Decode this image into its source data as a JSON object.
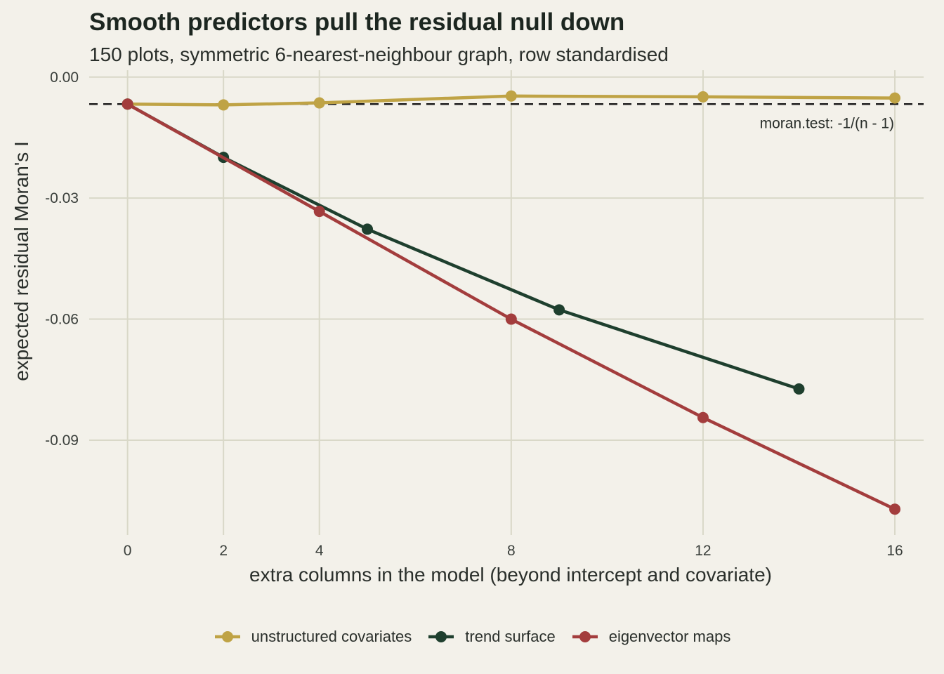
{
  "chart_data": {
    "type": "line",
    "title": "Smooth predictors pull the residual null down",
    "subtitle": "150 plots, symmetric 6-nearest-neighbour graph, row standardised",
    "xlabel": "extra columns in the model (beyond intercept and covariate)",
    "ylabel": "expected residual Moran's I",
    "xlim": [
      -0.8,
      16.6
    ],
    "ylim": [
      -0.1135,
      0.0017
    ],
    "x_ticks": [
      0,
      2,
      4,
      8,
      12,
      16
    ],
    "x_tick_labels": [
      "0",
      "2",
      "4",
      "8",
      "12",
      "16"
    ],
    "y_ticks": [
      0.0,
      -0.03,
      -0.06,
      -0.09
    ],
    "y_tick_labels": [
      "0.00",
      "-0.03",
      "-0.06",
      "-0.09"
    ],
    "grid": true,
    "legend_position": "bottom",
    "series": [
      {
        "name": "unstructured covariates",
        "color": "#bfa345",
        "x": [
          0,
          2,
          4,
          8,
          12,
          16
        ],
        "y": [
          -0.0067,
          -0.0069,
          -0.0064,
          -0.0047,
          -0.0049,
          -0.0052
        ]
      },
      {
        "name": "trend surface",
        "color": "#1e3f2e",
        "x": [
          0,
          2,
          5,
          9,
          14
        ],
        "y": [
          -0.0067,
          -0.0199,
          -0.0377,
          -0.0577,
          -0.0773
        ]
      },
      {
        "name": "eigenvector maps",
        "color": "#a33d3d",
        "x": [
          0,
          4,
          8,
          12,
          16
        ],
        "y": [
          -0.0067,
          -0.0333,
          -0.06,
          -0.0844,
          -0.1071
        ]
      }
    ],
    "reference_line": {
      "y": -0.0067,
      "style": "dashed",
      "color": "#1c1c1c",
      "label": "moran.test: -1/(n - 1)"
    }
  }
}
